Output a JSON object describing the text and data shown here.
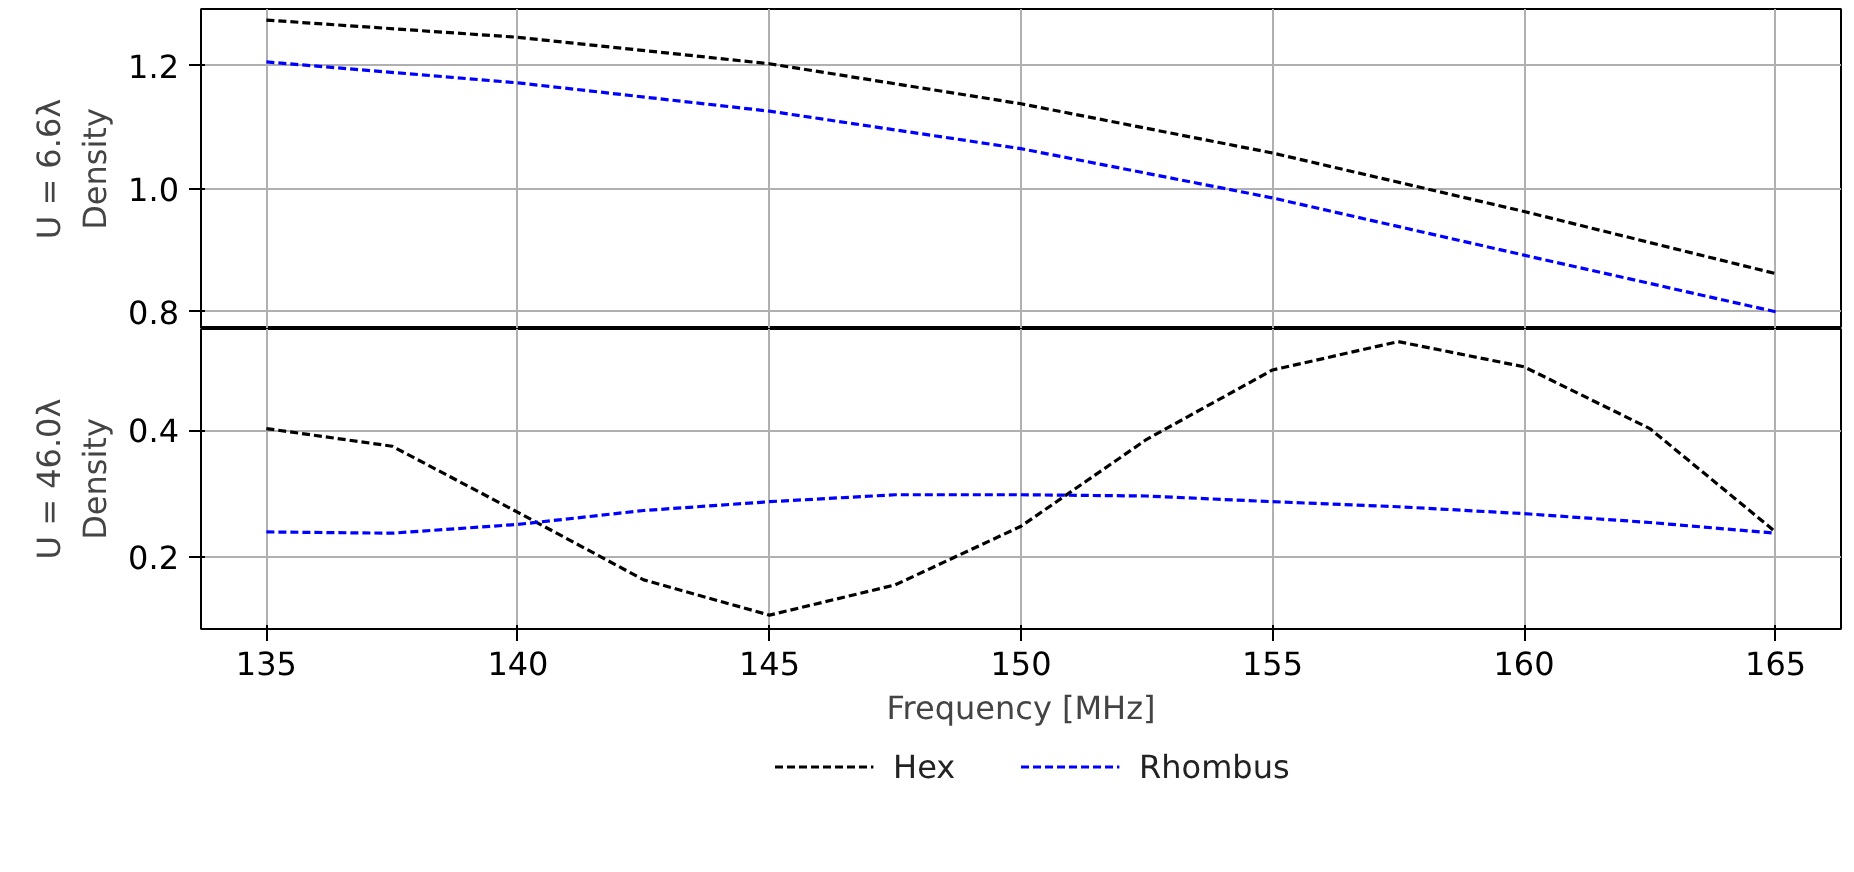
{
  "chart_data": [
    {
      "type": "line",
      "ylabel": "U = 6.6λ\nDensity",
      "x": [
        135,
        140,
        145,
        150,
        155,
        160,
        165
      ],
      "xlim": [
        133.7,
        166.3
      ],
      "xticks": [
        135,
        140,
        145,
        150,
        155,
        160,
        165
      ],
      "ylim": [
        0.772,
        1.292
      ],
      "yticks": [
        0.8,
        {
          "value": 1.0,
          "label": "1.0"
        },
        1.2
      ],
      "tick_labels": "y",
      "grid": true,
      "line_style": "dashed",
      "marker": "none",
      "series": [
        {
          "color": "#000000",
          "values": [
            1.274,
            1.246,
            1.203,
            1.138,
            1.058,
            0.963,
            0.862
          ]
        },
        {
          "color": "#0000ff",
          "values": [
            1.206,
            1.172,
            1.126,
            1.065,
            0.985,
            0.892,
            0.8
          ]
        }
      ]
    },
    {
      "type": "line",
      "ylabel": "U = 46.0λ\nDensity",
      "xlabel": "Frequency [MHz]",
      "x": [
        135,
        137.5,
        140,
        142.5,
        145,
        147.5,
        150,
        152.5,
        155,
        157.5,
        160,
        162.5,
        165
      ],
      "xlim": [
        133.7,
        166.3
      ],
      "xticks": [
        135,
        140,
        145,
        150,
        155,
        160,
        165
      ],
      "ylim": [
        0.085,
        0.561
      ],
      "yticks": [
        0.2,
        0.4
      ],
      "grid": true,
      "line_style": "dashed",
      "marker": "none",
      "legend": "bottom",
      "series": [
        {
          "name": "Hex",
          "color": "#000000",
          "values": [
            0.403,
            0.375,
            0.27,
            0.163,
            0.107,
            0.155,
            0.248,
            0.386,
            0.496,
            0.541,
            0.501,
            0.403,
            0.239
          ]
        },
        {
          "name": "Rhombus",
          "color": "#0000ff",
          "values": [
            0.239,
            0.237,
            0.251,
            0.273,
            0.287,
            0.298,
            0.298,
            0.296,
            0.287,
            0.279,
            0.268,
            0.254,
            0.237
          ]
        }
      ]
    }
  ]
}
